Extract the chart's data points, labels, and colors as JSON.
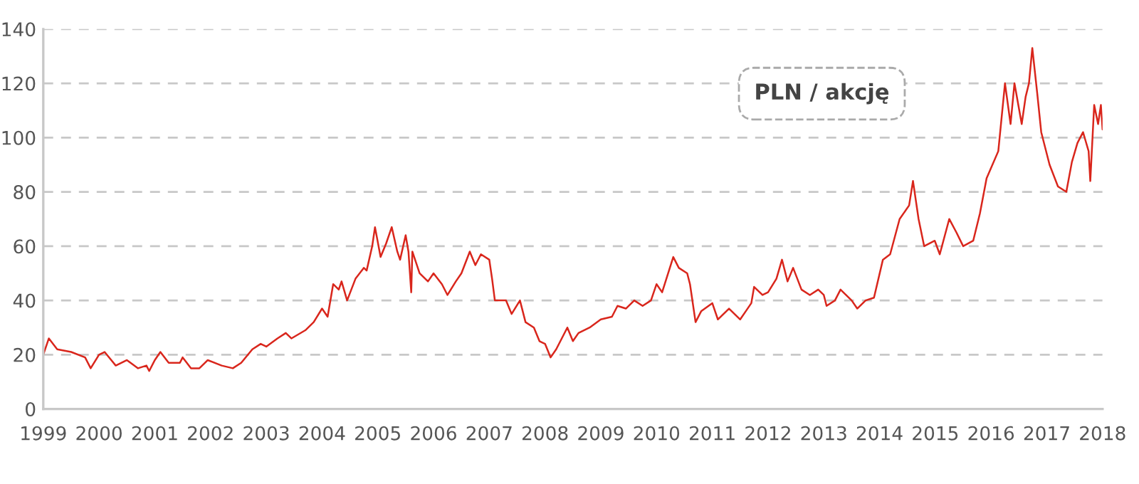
{
  "chart_data": {
    "type": "line",
    "annotations": [
      "PLN / akcję"
    ],
    "xlim": [
      1999,
      2018
    ],
    "xticks": [
      1999,
      2000,
      2001,
      2002,
      2003,
      2004,
      2005,
      2006,
      2007,
      2008,
      2009,
      2010,
      2011,
      2012,
      2013,
      2014,
      2015,
      2016,
      2017,
      2018
    ],
    "ylim": [
      0,
      140
    ],
    "yticks": [
      0,
      20,
      40,
      60,
      80,
      100,
      120,
      140
    ],
    "grid": "y",
    "line_style": "solid",
    "series": [
      {
        "color": "#d9261c",
        "x": [
          1999.0,
          1999.1,
          1999.25,
          1999.5,
          1999.75,
          1999.85,
          2000.0,
          2000.1,
          2000.3,
          2000.5,
          2000.7,
          2000.85,
          2000.9,
          2001.0,
          2001.1,
          2001.25,
          2001.45,
          2001.5,
          2001.65,
          2001.8,
          2001.95,
          2002.2,
          2002.4,
          2002.55,
          2002.75,
          2002.9,
          2003.0,
          2003.2,
          2003.35,
          2003.45,
          2003.7,
          2003.85,
          2004.0,
          2004.1,
          2004.2,
          2004.3,
          2004.35,
          2004.45,
          2004.6,
          2004.75,
          2004.8,
          2004.9,
          2004.95,
          2005.05,
          2005.15,
          2005.25,
          2005.35,
          2005.4,
          2005.5,
          2005.55,
          2005.6,
          2005.62,
          2005.75,
          2005.9,
          2006.0,
          2006.15,
          2006.25,
          2006.4,
          2006.5,
          2006.65,
          2006.75,
          2006.85,
          2007.0,
          2007.05,
          2007.1,
          2007.3,
          2007.4,
          2007.55,
          2007.65,
          2007.8,
          2007.9,
          2008.0,
          2008.1,
          2008.2,
          2008.3,
          2008.4,
          2008.5,
          2008.6,
          2008.8,
          2009.0,
          2009.2,
          2009.3,
          2009.45,
          2009.6,
          2009.75,
          2009.9,
          2010.0,
          2010.1,
          2010.3,
          2010.4,
          2010.55,
          2010.6,
          2010.7,
          2010.8,
          2011.0,
          2011.1,
          2011.3,
          2011.5,
          2011.6,
          2011.7,
          2011.75,
          2011.9,
          2012.0,
          2012.15,
          2012.25,
          2012.35,
          2012.45,
          2012.6,
          2012.75,
          2012.9,
          2013.0,
          2013.05,
          2013.2,
          2013.3,
          2013.5,
          2013.6,
          2013.75,
          2013.9,
          2014.06,
          2014.19,
          2014.36,
          2014.53,
          2014.6,
          2014.7,
          2014.8,
          2014.99,
          2015.08,
          2015.25,
          2015.38,
          2015.5,
          2015.68,
          2015.8,
          2015.92,
          2016.13,
          2016.25,
          2016.35,
          2016.42,
          2016.55,
          2016.62,
          2016.68,
          2016.74,
          2016.83,
          2016.9,
          2017.05,
          2017.2,
          2017.35,
          2017.45,
          2017.55,
          2017.65,
          2017.75,
          2017.78,
          2017.85,
          2017.92,
          2017.97,
          2018.0
        ],
        "values": [
          20,
          26,
          22,
          21,
          19,
          15,
          20,
          21,
          16,
          18,
          15,
          16,
          14,
          18,
          21,
          17,
          17,
          19,
          15,
          15,
          18,
          16,
          15,
          17,
          22,
          24,
          23,
          26,
          28,
          26,
          29,
          32,
          37,
          34,
          46,
          44,
          47,
          40,
          48,
          52,
          51,
          60,
          67,
          56,
          61,
          67,
          58,
          55,
          64,
          58,
          43,
          58,
          50,
          47,
          50,
          46,
          42,
          47,
          50,
          58,
          53,
          57,
          55,
          48,
          40,
          40,
          35,
          40,
          32,
          30,
          25,
          24,
          19,
          22,
          26,
          30,
          25,
          28,
          30,
          33,
          34,
          38,
          37,
          40,
          38,
          40,
          46,
          43,
          56,
          52,
          50,
          46,
          32,
          36,
          39,
          33,
          37,
          33,
          36,
          39,
          45,
          42,
          43,
          48,
          55,
          47,
          52,
          44,
          42,
          44,
          42,
          38,
          40,
          44,
          40,
          37,
          40,
          41,
          55,
          57,
          70,
          75,
          84,
          70,
          60,
          62,
          57,
          70,
          65,
          60,
          62,
          72,
          85,
          95,
          120,
          105,
          120,
          105,
          115,
          120,
          133,
          116,
          102,
          90,
          82,
          80,
          91,
          98,
          102,
          95,
          84,
          112,
          105,
          112,
          103
        ]
      }
    ]
  }
}
